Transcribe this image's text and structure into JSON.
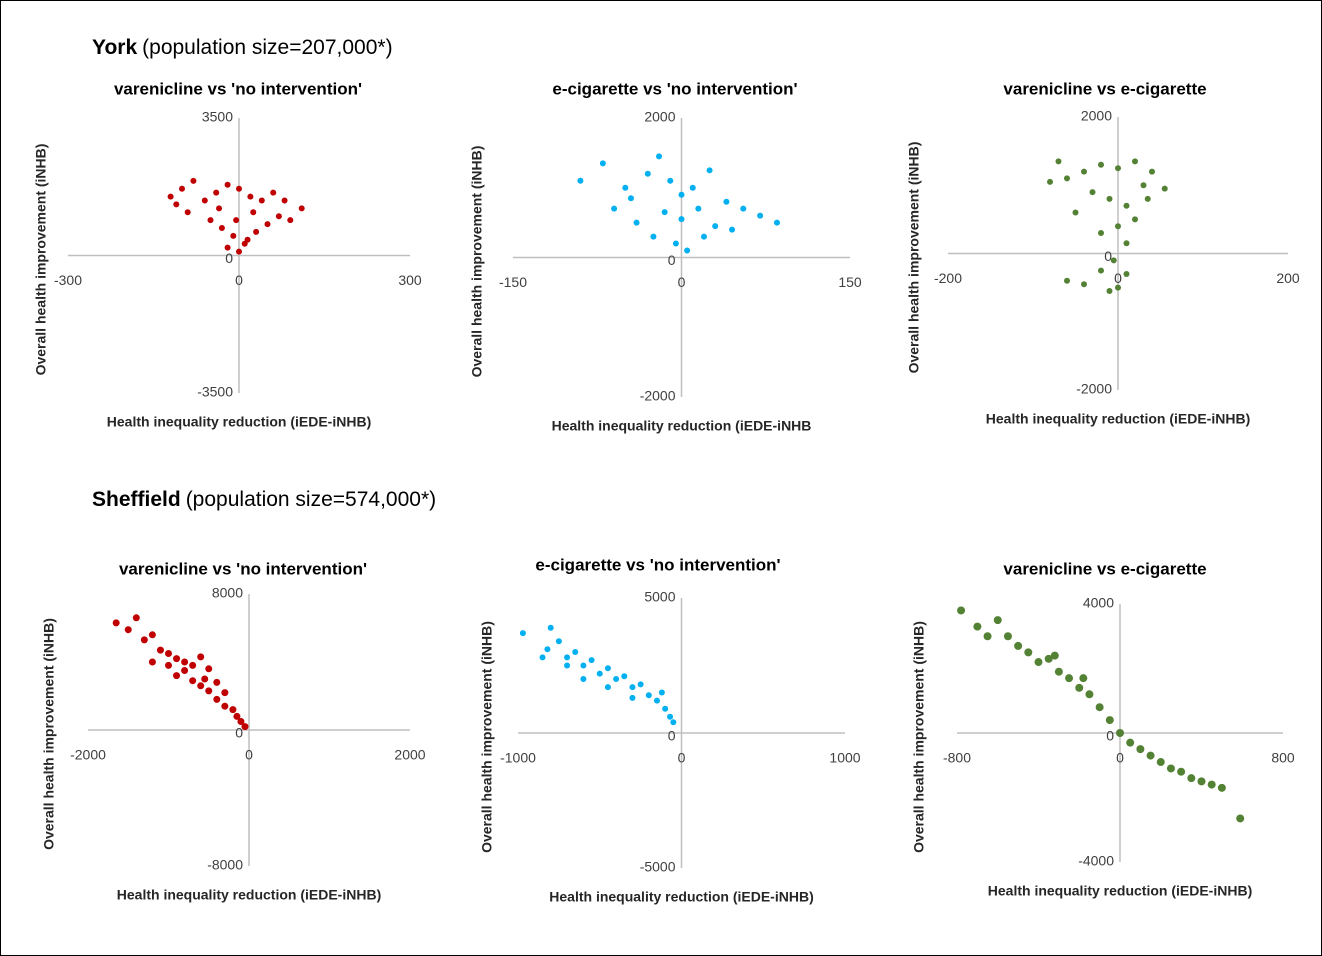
{
  "sections": [
    {
      "name": "York",
      "note": "(population size=207,000*)"
    },
    {
      "name": "Sheffield",
      "note": "(population size=574,000*)"
    }
  ],
  "chart_data": [
    {
      "type": "scatter",
      "title": "varenicline vs 'no intervention'",
      "xlabel": "Health inequality reduction (iEDE-iNHB)",
      "ylabel": "Overall health improvement (iNHB)",
      "color": "#c00000",
      "xlim": [
        -300,
        300
      ],
      "ylim": [
        -3500,
        3500
      ],
      "xticks": [
        -300,
        0,
        300
      ],
      "yticks": [
        -3500,
        0,
        3500
      ],
      "x": [
        -120,
        -100,
        -80,
        -60,
        -40,
        -20,
        0,
        20,
        40,
        60,
        80,
        110,
        -90,
        -50,
        -30,
        -10,
        10,
        30,
        50,
        70,
        -20,
        0,
        15,
        -5,
        25,
        -35,
        90,
        -110
      ],
      "values": [
        1500,
        1700,
        1900,
        1400,
        1600,
        1800,
        1700,
        1500,
        1400,
        1600,
        1400,
        1200,
        1100,
        900,
        700,
        500,
        300,
        600,
        800,
        1000,
        200,
        100,
        400,
        900,
        1100,
        1200,
        900,
        1300
      ]
    },
    {
      "type": "scatter",
      "title": "e-cigarette vs 'no intervention'",
      "xlabel": "Health inequality reduction (iEDE-iNHB",
      "ylabel": "Overall health improvement (iNHB)",
      "color": "#00b0f0",
      "xlim": [
        -150,
        150
      ],
      "ylim": [
        -2000,
        2000
      ],
      "xticks": [
        -150,
        0,
        150
      ],
      "yticks": [
        -2000,
        0,
        2000
      ],
      "x": [
        -90,
        -70,
        -50,
        -30,
        -20,
        -10,
        0,
        10,
        25,
        40,
        55,
        85,
        70,
        -60,
        -40,
        -25,
        -5,
        5,
        20,
        30,
        -15,
        15,
        45,
        -45,
        0
      ],
      "values": [
        1100,
        1350,
        1000,
        1200,
        1450,
        1100,
        900,
        1000,
        1250,
        800,
        700,
        500,
        600,
        700,
        500,
        300,
        200,
        100,
        300,
        450,
        650,
        700,
        400,
        850,
        550
      ]
    },
    {
      "type": "scatter",
      "title": "varenicline vs e-cigarette",
      "xlabel": "Health inequality reduction (iEDE-iNHB)",
      "ylabel": "Overall health improvement (iNHB)",
      "color": "#548235",
      "xlim": [
        -200,
        200
      ],
      "ylim": [
        -2000,
        2000
      ],
      "xticks": [
        -200,
        0,
        200
      ],
      "yticks": [
        -2000,
        0,
        2000
      ],
      "x": [
        -70,
        -80,
        -60,
        -40,
        -20,
        0,
        20,
        40,
        55,
        30,
        -30,
        -10,
        10,
        -50,
        20,
        0,
        -20,
        10,
        -5,
        -20,
        -40,
        -60,
        0,
        10,
        -10,
        35
      ],
      "values": [
        1350,
        1050,
        1100,
        1200,
        1300,
        1250,
        1350,
        1200,
        950,
        1000,
        900,
        800,
        700,
        600,
        500,
        400,
        300,
        150,
        -100,
        -250,
        -450,
        -400,
        -500,
        -300,
        -550,
        800
      ]
    },
    {
      "type": "scatter",
      "title": "varenicline vs 'no intervention'",
      "xlabel": "Health inequality reduction (iEDE-iNHB)",
      "ylabel": "Overall health improvement (iNHB)",
      "color": "#c00000",
      "xlim": [
        -2000,
        2000
      ],
      "ylim": [
        -8000,
        8000
      ],
      "xticks": [
        -2000,
        0,
        2000
      ],
      "yticks": [
        -8000,
        0,
        8000
      ],
      "x": [
        -1650,
        -1400,
        -1500,
        -1300,
        -1200,
        -1100,
        -1000,
        -900,
        -1200,
        -800,
        -700,
        -600,
        -500,
        -900,
        -700,
        -600,
        -500,
        -400,
        -300,
        -400,
        -300,
        -200,
        -150,
        -100,
        -50,
        -800,
        -550,
        -1000
      ],
      "values": [
        6300,
        6600,
        5900,
        5300,
        5600,
        4700,
        4500,
        4200,
        4000,
        4000,
        3800,
        4300,
        3600,
        3200,
        2900,
        2600,
        2300,
        2800,
        2200,
        1800,
        1400,
        1200,
        800,
        500,
        200,
        3500,
        3000,
        3800
      ]
    },
    {
      "type": "scatter",
      "title": "e-cigarette vs 'no intervention'",
      "xlabel": "Health inequality reduction (iEDE-iNHB)",
      "ylabel": "Overall health improvement (iNHB)",
      "color": "#00b0f0",
      "xlim": [
        -1000,
        1000
      ],
      "ylim": [
        -5000,
        5000
      ],
      "xticks": [
        -1000,
        0,
        1000
      ],
      "yticks": [
        -5000,
        0,
        5000
      ],
      "x": [
        -970,
        -800,
        -820,
        -750,
        -700,
        -650,
        -600,
        -550,
        -500,
        -450,
        -400,
        -350,
        -300,
        -250,
        -200,
        -150,
        -100,
        -70,
        -50,
        -600,
        -450,
        -300,
        -700,
        -850,
        -120
      ],
      "values": [
        3700,
        3900,
        3100,
        3400,
        2800,
        3000,
        2500,
        2700,
        2200,
        2400,
        2000,
        2100,
        1700,
        1800,
        1400,
        1200,
        900,
        600,
        400,
        2000,
        1700,
        1300,
        2500,
        2800,
        1500
      ]
    },
    {
      "type": "scatter",
      "title": "varenicline vs e-cigarette",
      "xlabel": "Health inequality reduction (iEDE-iNHB)",
      "ylabel": "Overall health improvement (iNHB)",
      "color": "#548235",
      "xlim": [
        -800,
        800
      ],
      "ylim": [
        -4000,
        4000
      ],
      "xticks": [
        -800,
        0,
        800
      ],
      "yticks": [
        -4000,
        0,
        4000
      ],
      "x": [
        -780,
        -700,
        -600,
        -550,
        -500,
        -450,
        -400,
        -350,
        -300,
        -250,
        -200,
        -150,
        -100,
        -50,
        0,
        50,
        100,
        150,
        200,
        250,
        300,
        350,
        400,
        450,
        500,
        590,
        -650,
        -320,
        -180
      ],
      "values": [
        3800,
        3300,
        3500,
        3000,
        2700,
        2500,
        2200,
        2300,
        1900,
        1700,
        1400,
        1200,
        800,
        400,
        0,
        -300,
        -500,
        -700,
        -900,
        -1100,
        -1200,
        -1400,
        -1500,
        -1600,
        -1700,
        -2650,
        3000,
        2400,
        1700
      ]
    }
  ]
}
